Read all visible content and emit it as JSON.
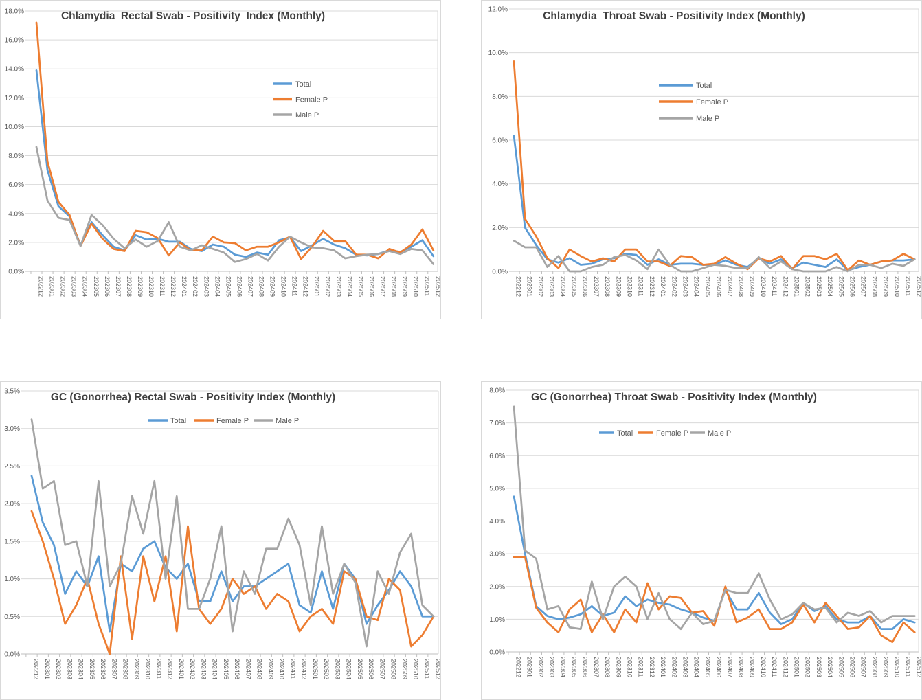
{
  "colors": {
    "total": "#5B9BD5",
    "female_p": "#ED7D31",
    "male_p": "#A5A5A5",
    "gridline": "#D9D9D9",
    "axis_line": "#BFBFBF",
    "axis_text": "#595959",
    "title_text": "#3F3F3F",
    "background": "#FFFFFF"
  },
  "months": [
    "202212",
    "202301",
    "202302",
    "202303",
    "202304",
    "202305",
    "202306",
    "202307",
    "202308",
    "202309",
    "202310",
    "202311",
    "202312",
    "202401",
    "202402",
    "202403",
    "202404",
    "202405",
    "202406",
    "202407",
    "202408",
    "202409",
    "202410",
    "202411",
    "202412",
    "202501",
    "202502",
    "202503",
    "202504",
    "202505",
    "202506",
    "202507",
    "202508",
    "202509",
    "202510",
    "202511",
    "202512"
  ],
  "chart_data": [
    {
      "type": "line",
      "title": "Chlamydia  Rectal Swab - Positivity  Index (Monthly)",
      "xlabel": "",
      "ylabel": "",
      "ylim": [
        0,
        18
      ],
      "y_step": 2,
      "y_ticks": [
        "0.0%",
        "2.0%",
        "4.0%",
        "6.0%",
        "8.0%",
        "10.0%",
        "12.0%",
        "14.0%",
        "16.0%",
        "18.0%"
      ],
      "grid": true,
      "legend_position": "inside-right-vertical",
      "x_categories": [
        "202212",
        "202301",
        "202302",
        "202303",
        "202304",
        "202305",
        "202306",
        "202307",
        "202308",
        "202309",
        "202310",
        "202311",
        "202312",
        "202401",
        "202402",
        "202403",
        "202404",
        "202405",
        "202406",
        "202407",
        "202408",
        "202409",
        "202410",
        "202411",
        "202412",
        "202501",
        "202502",
        "202503",
        "202504",
        "202505",
        "202506",
        "202507",
        "202508",
        "202509",
        "202510",
        "202511",
        "202512"
      ],
      "series": [
        {
          "name": "Total",
          "key": "total",
          "values": [
            13.9,
            7.0,
            4.5,
            3.8,
            1.8,
            3.4,
            2.5,
            1.7,
            1.45,
            2.5,
            2.2,
            2.25,
            2.05,
            2.05,
            1.55,
            1.4,
            1.85,
            1.7,
            1.15,
            1.0,
            1.3,
            1.15,
            2.15,
            2.35,
            1.4,
            1.8,
            2.25,
            1.85,
            1.6,
            1.15,
            1.1,
            1.2,
            1.45,
            1.35,
            1.7,
            2.15,
            1.05
          ]
        },
        {
          "name": "Female P",
          "key": "female_p",
          "values": [
            17.2,
            7.6,
            4.8,
            3.9,
            1.75,
            3.3,
            2.25,
            1.55,
            1.4,
            2.8,
            2.7,
            2.3,
            1.1,
            2.0,
            1.45,
            1.45,
            2.4,
            2.0,
            1.95,
            1.45,
            1.7,
            1.7,
            2.0,
            2.4,
            0.85,
            1.7,
            2.8,
            2.1,
            2.1,
            1.15,
            1.15,
            0.9,
            1.55,
            1.3,
            1.85,
            2.9,
            1.45
          ]
        },
        {
          "name": "Male P",
          "key": "male_p",
          "values": [
            8.6,
            4.9,
            3.7,
            3.55,
            1.75,
            3.9,
            3.2,
            2.25,
            1.6,
            2.2,
            1.7,
            2.1,
            3.4,
            1.7,
            1.45,
            1.8,
            1.55,
            1.3,
            0.65,
            0.85,
            1.2,
            0.75,
            1.7,
            2.4,
            2.0,
            1.65,
            1.6,
            1.45,
            0.9,
            1.05,
            1.15,
            1.2,
            1.4,
            1.2,
            1.55,
            1.45,
            0.5
          ]
        }
      ]
    },
    {
      "type": "line",
      "title": "Chlamydia  Throat Swab - Positivity Index (Monthly)",
      "xlabel": "",
      "ylabel": "",
      "ylim": [
        0,
        12
      ],
      "y_step": 2,
      "y_ticks": [
        "0.0%",
        "2.0%",
        "4.0%",
        "6.0%",
        "8.0%",
        "10.0%",
        "12.0%"
      ],
      "grid": true,
      "legend_position": "inside-center-vertical",
      "x_categories": [
        "202212",
        "202301",
        "202302",
        "202303",
        "202304",
        "202305",
        "202306",
        "202307",
        "202308",
        "202309",
        "202310",
        "202311",
        "202312",
        "202401",
        "202402",
        "202403",
        "202404",
        "202405",
        "202406",
        "202407",
        "202408",
        "202409",
        "202410",
        "202411",
        "202412",
        "202501",
        "202502",
        "202503",
        "202504",
        "202505",
        "202506",
        "202507",
        "202508",
        "202509",
        "202510",
        "202511",
        "202512"
      ],
      "series": [
        {
          "name": "Total",
          "key": "total",
          "values": [
            6.2,
            2.0,
            1.2,
            0.55,
            0.4,
            0.6,
            0.3,
            0.35,
            0.55,
            0.6,
            0.8,
            0.75,
            0.3,
            0.55,
            0.3,
            0.35,
            0.35,
            0.3,
            0.3,
            0.5,
            0.3,
            0.2,
            0.6,
            0.35,
            0.55,
            0.15,
            0.4,
            0.3,
            0.2,
            0.55,
            0.05,
            0.2,
            0.3,
            0.45,
            0.5,
            0.5,
            0.55
          ]
        },
        {
          "name": "Female P",
          "key": "female_p",
          "values": [
            9.6,
            2.4,
            1.6,
            0.6,
            0.15,
            1.0,
            0.7,
            0.45,
            0.6,
            0.45,
            1.0,
            1.0,
            0.45,
            0.45,
            0.25,
            0.7,
            0.65,
            0.3,
            0.35,
            0.65,
            0.35,
            0.1,
            0.6,
            0.45,
            0.7,
            0.1,
            0.7,
            0.7,
            0.55,
            0.8,
            0.05,
            0.5,
            0.3,
            0.45,
            0.5,
            0.8,
            0.55
          ]
        },
        {
          "name": "Male P",
          "key": "male_p",
          "values": [
            1.4,
            1.1,
            1.1,
            0.2,
            0.7,
            0.0,
            0.0,
            0.2,
            0.3,
            0.65,
            0.75,
            0.5,
            0.1,
            1.0,
            0.3,
            0.0,
            0.0,
            0.15,
            0.3,
            0.25,
            0.15,
            0.15,
            0.65,
            0.15,
            0.45,
            0.1,
            0.0,
            0.0,
            0.0,
            0.2,
            0.0,
            0.3,
            0.3,
            0.15,
            0.35,
            0.25,
            0.55
          ]
        }
      ]
    },
    {
      "type": "line",
      "title": "GC (Gonorrhea) Rectal Swab - Positivity Index (Monthly)",
      "xlabel": "",
      "ylabel": "",
      "ylim": [
        0,
        3.5
      ],
      "y_step": 0.5,
      "y_ticks": [
        "0.0%",
        "0.5%",
        "1.0%",
        "1.5%",
        "2.0%",
        "2.5%",
        "3.0%",
        "3.5%"
      ],
      "grid": true,
      "legend_position": "top-horizontal",
      "x_categories": [
        "202212",
        "202301",
        "202302",
        "202303",
        "202304",
        "202305",
        "202306",
        "202307",
        "202308",
        "202309",
        "202310",
        "202311",
        "202312",
        "202401",
        "202402",
        "202403",
        "202404",
        "202405",
        "202406",
        "202407",
        "202408",
        "202409",
        "202410",
        "202411",
        "202412",
        "202501",
        "202502",
        "202503",
        "202504",
        "202505",
        "202506",
        "202507",
        "202508",
        "202509",
        "202510",
        "202511",
        "202512"
      ],
      "series": [
        {
          "name": "Total",
          "key": "total",
          "values": [
            2.37,
            1.75,
            1.45,
            0.8,
            1.1,
            0.9,
            1.3,
            0.3,
            1.2,
            1.1,
            1.4,
            1.5,
            1.15,
            1.0,
            1.2,
            0.7,
            0.7,
            1.1,
            0.7,
            0.9,
            0.9,
            1.0,
            1.1,
            1.2,
            0.65,
            0.55,
            1.1,
            0.6,
            1.2,
            1.0,
            0.4,
            0.65,
            0.85,
            1.1,
            0.9,
            0.5,
            0.5
          ]
        },
        {
          "name": "Female P",
          "key": "female_p",
          "values": [
            1.9,
            1.5,
            1.0,
            0.4,
            0.65,
            1.0,
            0.4,
            0.0,
            1.3,
            0.2,
            1.3,
            0.7,
            1.3,
            0.3,
            1.7,
            0.6,
            0.4,
            0.6,
            1.0,
            0.8,
            0.9,
            0.6,
            0.8,
            0.7,
            0.3,
            0.5,
            0.6,
            0.4,
            1.1,
            1.0,
            0.5,
            0.45,
            1.0,
            0.85,
            0.1,
            0.25,
            0.5
          ]
        },
        {
          "name": "Male P",
          "key": "male_p",
          "values": [
            3.12,
            2.2,
            2.3,
            1.45,
            1.5,
            0.9,
            2.3,
            0.9,
            1.2,
            2.1,
            1.6,
            2.3,
            1.0,
            2.1,
            0.6,
            0.6,
            1.0,
            1.7,
            0.3,
            1.1,
            0.8,
            1.4,
            1.4,
            1.8,
            1.45,
            0.65,
            1.7,
            0.8,
            1.2,
            0.95,
            0.1,
            1.1,
            0.8,
            1.35,
            1.6,
            0.65,
            0.5
          ]
        }
      ]
    },
    {
      "type": "line",
      "title": "GC (Gonorrhea) Throat Swab - Positivity Index (Monthly)",
      "xlabel": "",
      "ylabel": "",
      "ylim": [
        0,
        8
      ],
      "y_step": 1,
      "y_ticks": [
        "0.0%",
        "1.0%",
        "2.0%",
        "3.0%",
        "4.0%",
        "5.0%",
        "6.0%",
        "7.0%",
        "8.0%"
      ],
      "grid": true,
      "legend_position": "top-horizontal",
      "x_categories": [
        "202212",
        "202301",
        "202302",
        "202303",
        "202304",
        "202305",
        "202306",
        "202307",
        "202308",
        "202309",
        "202310",
        "202311",
        "202312",
        "202401",
        "202402",
        "202403",
        "202404",
        "202405",
        "202406",
        "202407",
        "202408",
        "202409",
        "202410",
        "202411",
        "202412",
        "202501",
        "202502",
        "202503",
        "202504",
        "202505",
        "202506",
        "202507",
        "202508",
        "202509",
        "202510",
        "202511",
        "202512"
      ],
      "series": [
        {
          "name": "Total",
          "key": "total",
          "values": [
            4.75,
            3.0,
            1.4,
            1.1,
            1.0,
            1.05,
            1.15,
            1.4,
            1.1,
            1.2,
            1.7,
            1.4,
            1.6,
            1.5,
            1.45,
            1.3,
            1.2,
            1.05,
            0.95,
            1.9,
            1.3,
            1.3,
            1.8,
            1.2,
            0.85,
            1.0,
            1.5,
            1.25,
            1.4,
            1.0,
            0.9,
            0.9,
            1.1,
            0.7,
            0.7,
            1.0,
            0.9
          ]
        },
        {
          "name": "Female P",
          "key": "female_p",
          "values": [
            2.9,
            2.9,
            1.35,
            0.9,
            0.6,
            1.3,
            1.6,
            0.6,
            1.15,
            0.6,
            1.3,
            0.9,
            2.1,
            1.3,
            1.7,
            1.65,
            1.2,
            1.25,
            0.8,
            2.0,
            0.9,
            1.05,
            1.3,
            0.7,
            0.7,
            0.9,
            1.45,
            0.9,
            1.5,
            1.1,
            0.7,
            0.75,
            1.1,
            0.5,
            0.3,
            0.9,
            0.6
          ]
        },
        {
          "name": "Male P",
          "key": "male_p",
          "values": [
            7.5,
            3.1,
            2.85,
            1.3,
            1.4,
            0.75,
            0.7,
            2.15,
            1.0,
            2.0,
            2.3,
            2.0,
            1.0,
            1.8,
            1.0,
            0.7,
            1.2,
            0.85,
            0.95,
            1.9,
            1.8,
            1.8,
            2.4,
            1.6,
            1.0,
            1.15,
            1.5,
            1.3,
            1.35,
            0.9,
            1.2,
            1.1,
            1.25,
            0.9,
            1.1,
            1.1,
            1.1
          ]
        }
      ]
    }
  ]
}
